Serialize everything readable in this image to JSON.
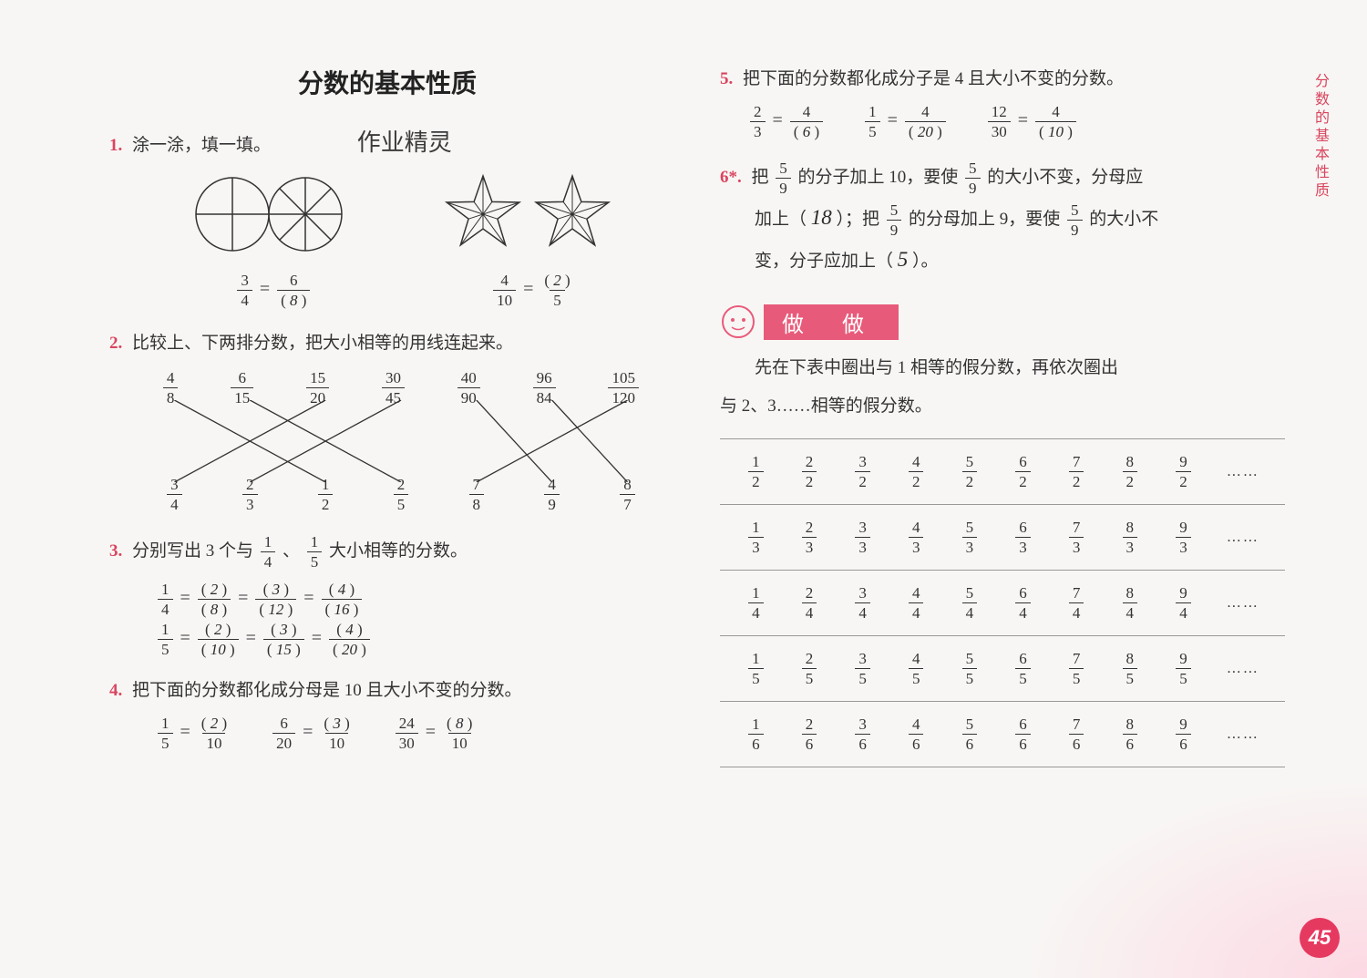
{
  "title": "分数的基本性质",
  "side_label": "分数的基本性质",
  "page_number": "45",
  "hand_watermark": "作业精灵",
  "colors": {
    "accent": "#d9455f",
    "badge_bg": "#e85a7a",
    "page_badge": "#e63960",
    "text": "#333333",
    "bg": "#f8f6f4",
    "grid": "#999999"
  },
  "fonts": {
    "body_pt": 19,
    "title_pt": 28,
    "frac_pt": 17
  },
  "q1": {
    "num": "1.",
    "text": "涂一涂，填一填。",
    "eq_a": {
      "a_num": "3",
      "a_den": "4",
      "b_num": "6",
      "b_den": "8"
    },
    "eq_b": {
      "a_num": "4",
      "a_den": "10",
      "b_num": "2",
      "b_den": "5"
    }
  },
  "q2": {
    "num": "2.",
    "text": "比较上、下两排分数，把大小相等的用线连起来。",
    "top": [
      {
        "n": "4",
        "d": "8"
      },
      {
        "n": "6",
        "d": "15"
      },
      {
        "n": "15",
        "d": "20"
      },
      {
        "n": "30",
        "d": "45"
      },
      {
        "n": "40",
        "d": "90"
      },
      {
        "n": "96",
        "d": "84"
      },
      {
        "n": "105",
        "d": "120"
      }
    ],
    "bottom": [
      {
        "n": "3",
        "d": "4"
      },
      {
        "n": "2",
        "d": "3"
      },
      {
        "n": "1",
        "d": "2"
      },
      {
        "n": "2",
        "d": "5"
      },
      {
        "n": "7",
        "d": "8"
      },
      {
        "n": "4",
        "d": "9"
      },
      {
        "n": "8",
        "d": "7"
      }
    ],
    "connections": [
      [
        0,
        2
      ],
      [
        1,
        3
      ],
      [
        2,
        0
      ],
      [
        3,
        1
      ],
      [
        4,
        5
      ],
      [
        5,
        6
      ],
      [
        6,
        4
      ]
    ]
  },
  "q3": {
    "num": "3.",
    "text_a": "分别写出 3 个与",
    "f1": {
      "n": "1",
      "d": "4"
    },
    "mid": "、",
    "f2": {
      "n": "1",
      "d": "5"
    },
    "text_b": "大小相等的分数。",
    "row1": {
      "base": {
        "n": "1",
        "d": "4"
      },
      "r": [
        {
          "n": "2",
          "d": "8"
        },
        {
          "n": "3",
          "d": "12"
        },
        {
          "n": "4",
          "d": "16"
        }
      ]
    },
    "row2": {
      "base": {
        "n": "1",
        "d": "5"
      },
      "r": [
        {
          "n": "2",
          "d": "10"
        },
        {
          "n": "3",
          "d": "15"
        },
        {
          "n": "4",
          "d": "20"
        }
      ]
    }
  },
  "q4": {
    "num": "4.",
    "text": "把下面的分数都化成分母是 10 且大小不变的分数。",
    "items": [
      {
        "a": {
          "n": "1",
          "d": "5"
        },
        "ans": "2",
        "den": "10"
      },
      {
        "a": {
          "n": "6",
          "d": "20"
        },
        "ans": "3",
        "den": "10"
      },
      {
        "a": {
          "n": "24",
          "d": "30"
        },
        "ans": "8",
        "den": "10"
      }
    ]
  },
  "q5": {
    "num": "5.",
    "text": "把下面的分数都化成分子是 4 且大小不变的分数。",
    "items": [
      {
        "a": {
          "n": "2",
          "d": "3"
        },
        "num4": "4",
        "ans": "6"
      },
      {
        "a": {
          "n": "1",
          "d": "5"
        },
        "num4": "4",
        "ans": "20"
      },
      {
        "a": {
          "n": "12",
          "d": "30"
        },
        "num4": "4",
        "ans": "10"
      }
    ]
  },
  "q6": {
    "num": "6*.",
    "part1a": "把",
    "f59": {
      "n": "5",
      "d": "9"
    },
    "part1b": "的分子加上 10，要使",
    "part1c": "的大小不变，分母应",
    "part2a": "加上（",
    "ans1": "18",
    "part2b": "）；把",
    "part2c": "的分母加上 9，要使",
    "part2d": "的大小不",
    "part3a": "变，分子应加上（",
    "ans2": "5",
    "part3b": "）。"
  },
  "zuozuo": {
    "label": "做 做",
    "p1": "先在下表中圈出与 1 相等的假分数，再依次圈出",
    "p2": "与 2、3……相等的假分数。",
    "ellipsis": "……",
    "table": {
      "denominators": [
        "2",
        "3",
        "4",
        "5",
        "6"
      ],
      "numerators": [
        "1",
        "2",
        "3",
        "4",
        "5",
        "6",
        "7",
        "8",
        "9"
      ]
    }
  }
}
